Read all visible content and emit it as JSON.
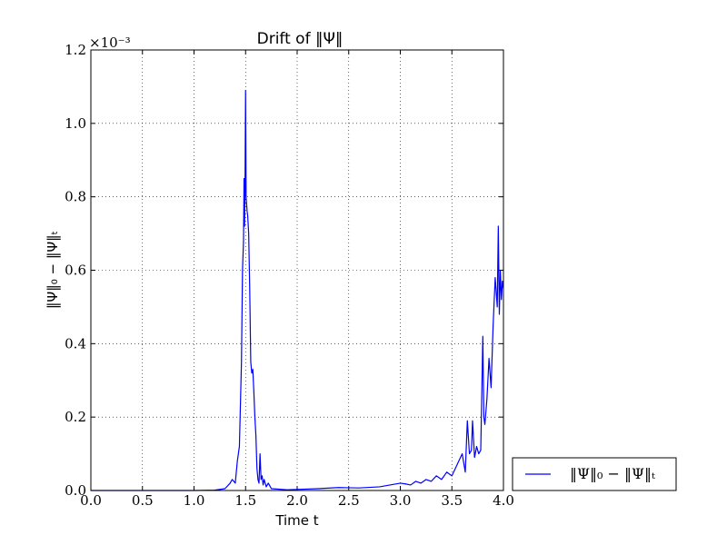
{
  "chart_data": {
    "type": "line",
    "title": "Drift of ‖Ψ‖",
    "xlabel": "Time t",
    "ylabel": "‖Ψ‖₀ − ‖Ψ‖ₜ",
    "y_multiplier_label": "×10⁻³",
    "xlim": [
      0.0,
      4.0
    ],
    "ylim": [
      0.0,
      1.2
    ],
    "xticks": [
      "0.0",
      "0.5",
      "1.0",
      "1.5",
      "2.0",
      "2.5",
      "3.0",
      "3.5",
      "4.0"
    ],
    "yticks": [
      "0.0",
      "0.2",
      "0.4",
      "0.6",
      "0.8",
      "1.0",
      "1.2"
    ],
    "grid": true,
    "legend_position": "outside-lower-right",
    "series": [
      {
        "name": "‖Ψ‖₀ − ‖Ψ‖ₜ",
        "color": "#0000ff",
        "x": [
          0.0,
          0.5,
          1.0,
          1.2,
          1.3,
          1.35,
          1.37,
          1.4,
          1.42,
          1.44,
          1.46,
          1.47,
          1.48,
          1.485,
          1.49,
          1.495,
          1.5,
          1.505,
          1.51,
          1.515,
          1.52,
          1.53,
          1.54,
          1.55,
          1.56,
          1.57,
          1.58,
          1.59,
          1.6,
          1.61,
          1.62,
          1.63,
          1.64,
          1.65,
          1.66,
          1.67,
          1.68,
          1.7,
          1.72,
          1.75,
          1.8,
          1.9,
          2.0,
          2.2,
          2.4,
          2.6,
          2.8,
          2.9,
          3.0,
          3.05,
          3.1,
          3.15,
          3.2,
          3.25,
          3.3,
          3.35,
          3.4,
          3.45,
          3.5,
          3.55,
          3.6,
          3.63,
          3.65,
          3.67,
          3.69,
          3.7,
          3.72,
          3.74,
          3.76,
          3.78,
          3.8,
          3.81,
          3.82,
          3.84,
          3.86,
          3.88,
          3.9,
          3.92,
          3.94,
          3.95,
          3.96,
          3.97,
          3.98,
          3.99,
          4.0
        ],
        "y": [
          0.0,
          0.0,
          0.0,
          0.001,
          0.005,
          0.02,
          0.03,
          0.02,
          0.08,
          0.12,
          0.35,
          0.6,
          0.68,
          0.85,
          0.72,
          0.85,
          1.09,
          0.8,
          0.78,
          0.76,
          0.75,
          0.7,
          0.55,
          0.35,
          0.32,
          0.33,
          0.27,
          0.2,
          0.15,
          0.06,
          0.03,
          0.02,
          0.1,
          0.03,
          0.04,
          0.015,
          0.03,
          0.01,
          0.02,
          0.005,
          0.004,
          0.002,
          0.003,
          0.005,
          0.008,
          0.007,
          0.01,
          0.015,
          0.02,
          0.018,
          0.015,
          0.025,
          0.02,
          0.03,
          0.025,
          0.04,
          0.03,
          0.05,
          0.04,
          0.07,
          0.1,
          0.05,
          0.19,
          0.1,
          0.11,
          0.19,
          0.09,
          0.12,
          0.1,
          0.11,
          0.42,
          0.2,
          0.18,
          0.25,
          0.36,
          0.28,
          0.45,
          0.58,
          0.5,
          0.72,
          0.48,
          0.6,
          0.52,
          0.57,
          0.55
        ]
      }
    ]
  }
}
